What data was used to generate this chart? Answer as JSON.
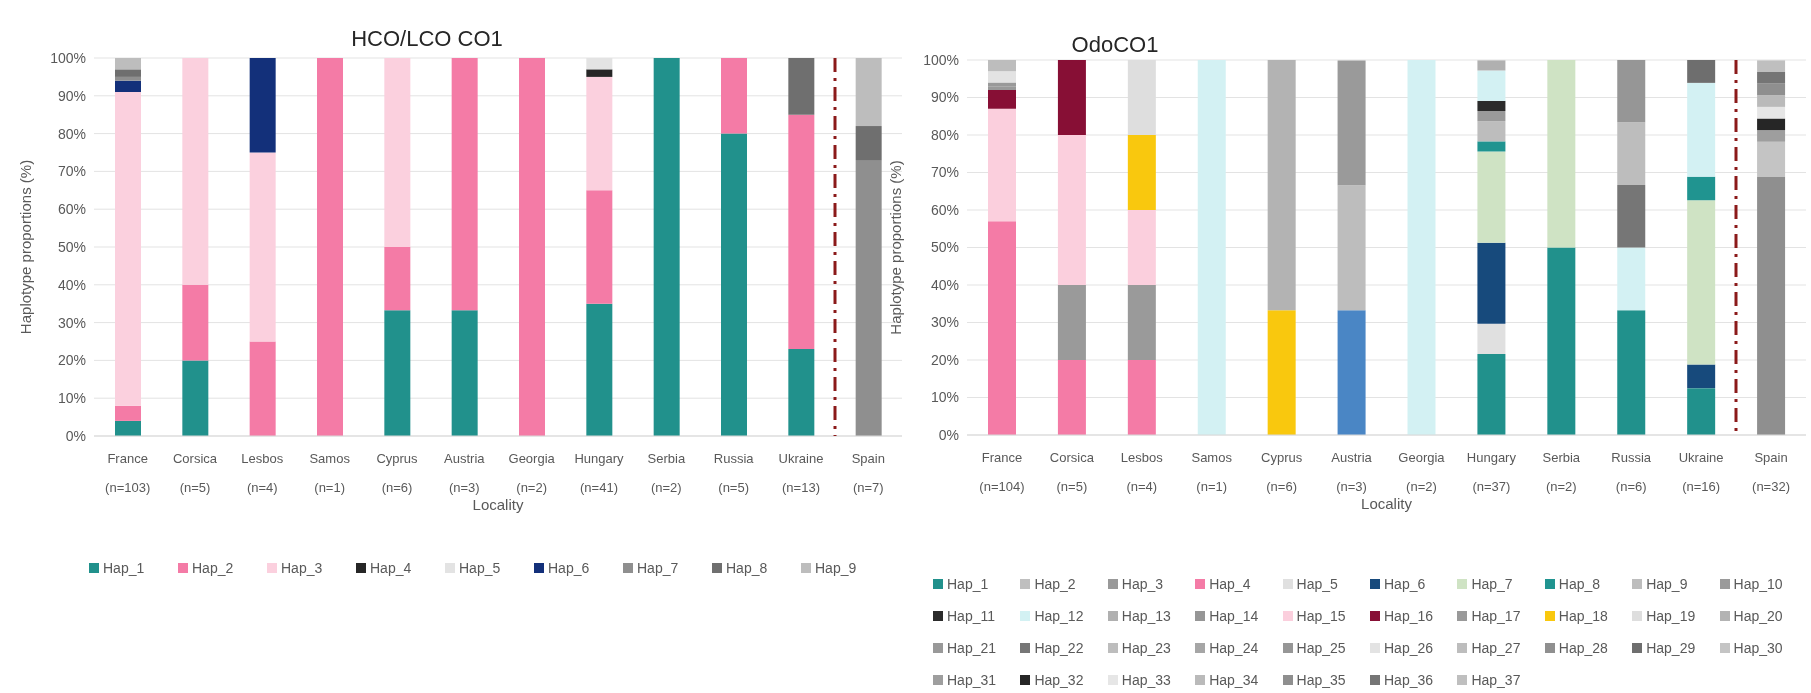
{
  "chart_data": [
    {
      "type": "bar",
      "title": "HCO/LCO CO1",
      "xlabel": "Locality",
      "ylabel": "Haplotype proportions  (%)",
      "stacked": true,
      "grid": "y",
      "legend": "bottom",
      "categories": [
        "France (n=103)",
        "Corsica (n=5)",
        "Lesbos (n=4)",
        "Samos (n=1)",
        "Cyprus (n=6)",
        "Austria (n=3)",
        "Georgia (n=2)",
        "Hungary (n=41)",
        "Serbia (n=2)",
        "Russia (n=5)",
        "Ukraine (n=13)",
        "Spain (n=7)"
      ],
      "ylim": [
        0,
        100
      ],
      "yticks": [
        {
          "value": 0,
          "label": "0%"
        },
        {
          "value": 10,
          "label": "10%"
        },
        {
          "value": 20,
          "label": "20%"
        },
        {
          "value": 30,
          "label": "30%"
        },
        {
          "value": 40,
          "label": "40%"
        },
        {
          "value": 50,
          "label": "50%"
        },
        {
          "value": 60,
          "label": "60%"
        },
        {
          "value": 70,
          "label": "70%"
        },
        {
          "value": 80,
          "label": "80%"
        },
        {
          "value": 90,
          "label": "90%"
        },
        {
          "value": 100,
          "label": "100%"
        }
      ],
      "series": [
        {
          "name": "Hap_1",
          "color": "#21918c",
          "values": [
            4,
            20,
            0,
            0,
            33.3,
            33.3,
            0,
            35,
            100,
            80,
            23,
            0
          ]
        },
        {
          "name": "Hap_2",
          "color": "#f47ba6",
          "values": [
            4,
            20,
            25,
            100,
            16.7,
            66.7,
            100,
            30,
            0,
            20,
            62,
            0
          ]
        },
        {
          "name": "Hap_3",
          "color": "#fbd0de",
          "values": [
            83,
            60,
            50,
            0,
            50,
            0,
            0,
            30,
            0,
            0,
            0,
            0
          ]
        },
        {
          "name": "Hap_4",
          "color": "#262626",
          "values": [
            0,
            0,
            0,
            0,
            0,
            0,
            0,
            2,
            0,
            0,
            0,
            0
          ]
        },
        {
          "name": "Hap_5",
          "color": "#e3e3e3",
          "values": [
            0,
            0,
            0,
            0,
            0,
            0,
            0,
            3,
            0,
            0,
            0,
            0
          ]
        },
        {
          "name": "Hap_6",
          "color": "#13307a",
          "values": [
            3,
            0,
            25,
            0,
            0,
            0,
            0,
            0,
            0,
            0,
            0,
            0
          ]
        },
        {
          "name": "Hap_7",
          "color": "#8f8f8f",
          "values": [
            1,
            0,
            0,
            0,
            0,
            0,
            0,
            0,
            0,
            0,
            0,
            73
          ]
        },
        {
          "name": "Hap_8",
          "color": "#6f6f6f",
          "values": [
            2,
            0,
            0,
            0,
            0,
            0,
            0,
            0,
            0,
            0,
            15,
            9
          ]
        },
        {
          "name": "Hap_9",
          "color": "#bdbdbd",
          "values": [
            3,
            0,
            0,
            0,
            0,
            0,
            0,
            0,
            0,
            0,
            0,
            18
          ]
        }
      ]
    },
    {
      "type": "bar",
      "title": "OdoCO1",
      "xlabel": "Locality",
      "ylabel": "Haplotype proportions (%)",
      "stacked": true,
      "grid": "y",
      "legend": "bottom",
      "categories": [
        "France (n=104)",
        "Corsica (n=5)",
        "Lesbos (n=4)",
        "Samos (n=1)",
        "Cyprus (n=6)",
        "Austria (n=3)",
        "Georgia (n=2)",
        "Hungary (n=37)",
        "Serbia (n=2)",
        "Russia (n=6)",
        "Ukraine (n=16)",
        "Spain (n=32)"
      ],
      "ylim": [
        0,
        100
      ],
      "yticks": [
        {
          "value": 0,
          "label": "0%"
        },
        {
          "value": 10,
          "label": "10%"
        },
        {
          "value": 20,
          "label": "20%"
        },
        {
          "value": 30,
          "label": "30%"
        },
        {
          "value": 40,
          "label": "40%"
        },
        {
          "value": 50,
          "label": "50%"
        },
        {
          "value": 60,
          "label": "60%"
        },
        {
          "value": 70,
          "label": "70%"
        },
        {
          "value": 80,
          "label": "80%"
        },
        {
          "value": 90,
          "label": "90%"
        },
        {
          "value": 100,
          "label": "100%"
        }
      ],
      "series": [
        {
          "name": "Hap_1",
          "color": "#21918c",
          "values": [
            0,
            0,
            0,
            0,
            0,
            0,
            0,
            21.6,
            50,
            33.3,
            12.5,
            0
          ]
        },
        {
          "name": "Hap_2",
          "color": "#bfbfbf",
          "values": [
            0,
            0,
            0,
            0,
            0,
            0,
            0,
            0,
            0,
            0,
            0,
            0
          ]
        },
        {
          "name": "Hap_3",
          "color": "#999999",
          "values": [
            0,
            0,
            0,
            0,
            0,
            0,
            0,
            0,
            0,
            0,
            0,
            0
          ]
        },
        {
          "name": "Hap_4",
          "color": "#f47ba6",
          "values": [
            57,
            20,
            20,
            0,
            0,
            0,
            0,
            0,
            0,
            0,
            0,
            0
          ]
        },
        {
          "name": "Hap_5",
          "color": "#e0e0e0",
          "values": [
            0,
            0,
            0,
            0,
            0,
            0,
            0,
            8.1,
            0,
            0,
            0,
            0
          ]
        },
        {
          "name": "Hap_6",
          "color": "#174a7c",
          "colors": [
            "#174a7c",
            "#174a7c",
            "#174a7c",
            "#174a7c",
            "#174a7c",
            "#4a86c5",
            "#174a7c",
            "#174a7c",
            "#174a7c",
            "#174a7c",
            "#174a7c",
            "#174a7c"
          ],
          "values": [
            0,
            0,
            0,
            0,
            0,
            33.3,
            0,
            21.6,
            0,
            0,
            6.3,
            0
          ]
        },
        {
          "name": "Hap_7",
          "color": "#cfe3c4",
          "values": [
            0,
            0,
            0,
            0,
            0,
            0,
            0,
            24.3,
            50,
            0,
            43.8,
            0
          ]
        },
        {
          "name": "Hap_8",
          "color": "#209490",
          "values": [
            0,
            0,
            0,
            0,
            0,
            0,
            0,
            2.7,
            0,
            0,
            6.3,
            0
          ]
        },
        {
          "name": "Hap_9",
          "color": "#bdbdbd",
          "values": [
            0,
            0,
            0,
            0,
            0,
            33.3,
            0,
            5.4,
            0,
            0,
            0,
            0
          ]
        },
        {
          "name": "Hap_10",
          "color": "#9a9a9a",
          "values": [
            0,
            20,
            20,
            0,
            0,
            33.3,
            0,
            2.7,
            0,
            0,
            0,
            0
          ]
        },
        {
          "name": "Hap_11",
          "color": "#2b2b2b",
          "values": [
            0,
            0,
            0,
            0,
            0,
            0,
            0,
            2.7,
            0,
            0,
            0,
            0
          ]
        },
        {
          "name": "Hap_12",
          "color": "#d3f1f3",
          "values": [
            0,
            0,
            0,
            100,
            0,
            0,
            100,
            8.1,
            0,
            16.7,
            25,
            0
          ]
        },
        {
          "name": "Hap_13",
          "color": "#b0b0b0",
          "values": [
            0,
            0,
            0,
            0,
            0,
            0,
            0,
            2.7,
            0,
            0,
            0,
            0
          ]
        },
        {
          "name": "Hap_14",
          "color": "#969696",
          "values": [
            0,
            0,
            0,
            0,
            0,
            0,
            0,
            0,
            0,
            0,
            0,
            0
          ]
        },
        {
          "name": "Hap_15",
          "color": "#fbcfdd",
          "values": [
            30,
            40,
            20,
            0,
            0,
            0,
            0,
            0,
            0,
            0,
            0,
            0
          ]
        },
        {
          "name": "Hap_16",
          "color": "#870f35",
          "values": [
            5,
            20,
            0,
            0,
            0,
            0,
            0,
            0,
            0,
            0,
            0,
            0
          ]
        },
        {
          "name": "Hap_17",
          "color": "#999999",
          "values": [
            1,
            0,
            0,
            0,
            0,
            0,
            0,
            0,
            0,
            0,
            0,
            0
          ]
        },
        {
          "name": "Hap_18",
          "color": "#f9c80e",
          "values": [
            0,
            0,
            20,
            0,
            33.3,
            0,
            0,
            0,
            0,
            0,
            0,
            0
          ]
        },
        {
          "name": "Hap_19",
          "color": "#dedede",
          "values": [
            0,
            0,
            20,
            0,
            0,
            0,
            0,
            0,
            0,
            0,
            0,
            0
          ]
        },
        {
          "name": "Hap_20",
          "color": "#b3b3b3",
          "values": [
            0,
            0,
            0,
            0,
            66.7,
            0,
            0,
            0,
            0,
            0,
            0,
            0
          ]
        },
        {
          "name": "Hap_21",
          "color": "#999999",
          "values": [
            1,
            0,
            0,
            0,
            0,
            0,
            0,
            0,
            0,
            0,
            0,
            0
          ]
        },
        {
          "name": "Hap_22",
          "color": "#767676",
          "values": [
            0,
            0,
            0,
            0,
            0,
            0,
            0,
            0,
            0,
            16.7,
            0,
            0
          ]
        },
        {
          "name": "Hap_23",
          "color": "#bdbdbd",
          "values": [
            0,
            0,
            0,
            0,
            0,
            0,
            0,
            0,
            0,
            16.7,
            0,
            0
          ]
        },
        {
          "name": "Hap_24",
          "color": "#a6a6a6",
          "values": [
            0,
            0,
            0,
            0,
            0,
            0,
            0,
            0,
            0,
            0,
            0,
            0
          ]
        },
        {
          "name": "Hap_25",
          "color": "#969696",
          "values": [
            0,
            0,
            0,
            0,
            0,
            0,
            0,
            0,
            0,
            16.7,
            0,
            0
          ]
        },
        {
          "name": "Hap_26",
          "color": "#e3e3e3",
          "values": [
            3,
            0,
            0,
            0,
            0,
            0,
            0,
            0,
            0,
            0,
            0,
            0
          ]
        },
        {
          "name": "Hap_27",
          "color": "#bdbdbd",
          "values": [
            3,
            0,
            0,
            0,
            0,
            0,
            0,
            0,
            0,
            0,
            0,
            0
          ]
        },
        {
          "name": "Hap_28",
          "color": "#8f8f8f",
          "values": [
            0,
            0,
            0,
            0,
            0,
            0,
            0,
            0,
            0,
            0,
            0,
            68.8
          ]
        },
        {
          "name": "Hap_29",
          "color": "#6e6e6e",
          "values": [
            0,
            0,
            0,
            0,
            0,
            0,
            0,
            0,
            0,
            0,
            6.3,
            0
          ]
        },
        {
          "name": "Hap_30",
          "color": "#c4c4c4",
          "values": [
            0,
            0,
            0,
            0,
            0,
            0,
            0,
            0,
            0,
            0,
            0,
            9.4
          ]
        },
        {
          "name": "Hap_31",
          "color": "#9e9e9e",
          "values": [
            0,
            0,
            0,
            0,
            0,
            0,
            0,
            0,
            0,
            0,
            0,
            3.1
          ]
        },
        {
          "name": "Hap_32",
          "color": "#262626",
          "values": [
            0,
            0,
            0,
            0,
            0,
            0,
            0,
            0,
            0,
            0,
            0,
            3.1
          ]
        },
        {
          "name": "Hap_33",
          "color": "#e6e6e6",
          "values": [
            0,
            0,
            0,
            0,
            0,
            0,
            0,
            0,
            0,
            0,
            0,
            3.1
          ]
        },
        {
          "name": "Hap_34",
          "color": "#bababa",
          "values": [
            0,
            0,
            0,
            0,
            0,
            0,
            0,
            0,
            0,
            0,
            0,
            3.1
          ]
        },
        {
          "name": "Hap_35",
          "color": "#8f8f8f",
          "values": [
            0,
            0,
            0,
            0,
            0,
            0,
            0,
            0,
            0,
            0,
            0,
            3.1
          ]
        },
        {
          "name": "Hap_36",
          "color": "#757575",
          "values": [
            0,
            0,
            0,
            0,
            0,
            0,
            0,
            0,
            0,
            0,
            0,
            3.1
          ]
        },
        {
          "name": "Hap_37",
          "color": "#bfbfbf",
          "values": [
            0,
            0,
            0,
            0,
            0,
            0,
            0,
            0,
            0,
            0,
            0,
            3.1
          ]
        }
      ]
    }
  ]
}
